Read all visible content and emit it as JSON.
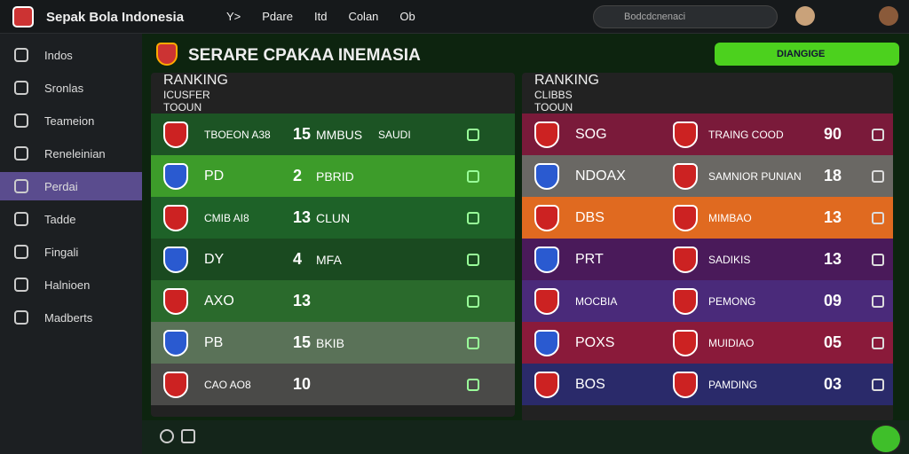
{
  "topbar": {
    "title": "Sepak Bola Indonesia",
    "nav": [
      "Y>",
      "Pdare",
      "Itd",
      "Colan",
      "Ob"
    ],
    "search_placeholder": "Bodcdcnenaci"
  },
  "sidebar": {
    "items": [
      "Indos",
      "Sronlas",
      "Teameion",
      "Reneleinian",
      "Perdai",
      "Tadde",
      "Fingali",
      "Halnioen",
      "Madberts"
    ],
    "active": 4
  },
  "main": {
    "title": "SERARE CPAKAA INEMASIA",
    "button": "DIANGIGE"
  },
  "left_panel": {
    "title": "RANKING",
    "columns": [
      "ICUSFER",
      "TOOUN"
    ],
    "rows": [
      [
        "TBOEON A38",
        "15",
        "MMBUS",
        "SAUDI"
      ],
      [
        "PD",
        "2",
        "PBRID",
        ""
      ],
      [
        "CMIB AI8",
        "13",
        "CLUN",
        ""
      ],
      [
        "DY",
        "4",
        "MFA",
        ""
      ],
      [
        "AXO",
        "13",
        "",
        ""
      ],
      [
        "PB",
        "15",
        "BKIB",
        ""
      ],
      [
        "CAO AO8",
        "10",
        "",
        ""
      ]
    ]
  },
  "right_panel": {
    "title": "RANKING",
    "columns": [
      "CLIBBS",
      "TOOUN"
    ],
    "rows": [
      [
        "SOG",
        "TRAING COOD",
        "90"
      ],
      [
        "NDOAX",
        "SAMNIOR PUNIAN",
        "18"
      ],
      [
        "DBS",
        "MIMBAO",
        "13"
      ],
      [
        "PRT",
        "SADIKIS",
        "13"
      ],
      [
        "MOCBIA",
        "PEMONG",
        "09"
      ],
      [
        "POXS",
        "MUIDIAO",
        "05"
      ],
      [
        "BOS",
        "PAMDING",
        "03"
      ]
    ]
  }
}
